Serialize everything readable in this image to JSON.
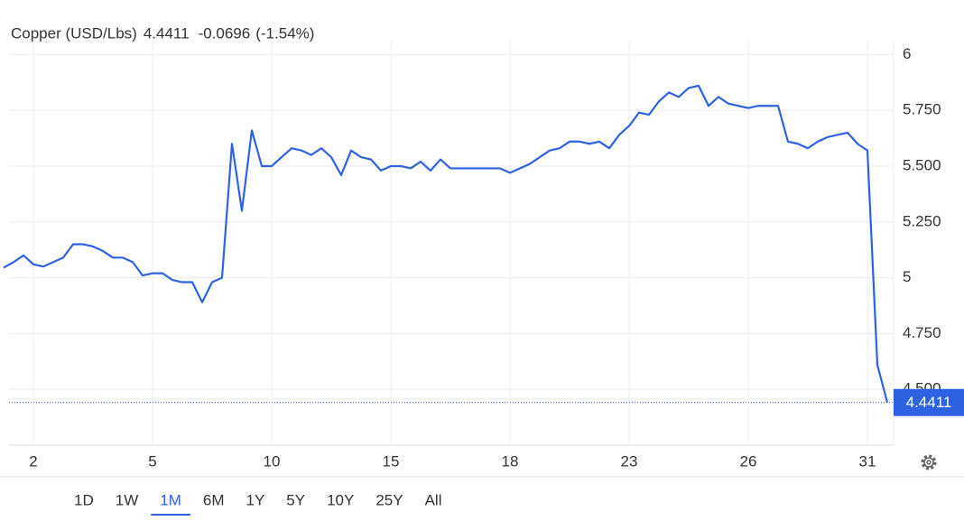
{
  "chart_data": {
    "type": "line",
    "title": "Copper (USD/Lbs)",
    "change": -0.0696,
    "change_label": "(-1.54%)",
    "color": "#2f62e3",
    "change_color": "#e04a4f",
    "grid": true,
    "categories": [
      null,
      null,
      null,
      "2",
      null,
      null,
      null,
      null,
      null,
      null,
      null,
      null,
      null,
      null,
      null,
      "5",
      null,
      null,
      null,
      null,
      null,
      null,
      null,
      null,
      null,
      null,
      null,
      "10",
      null,
      null,
      null,
      null,
      null,
      null,
      null,
      null,
      null,
      null,
      null,
      "15",
      null,
      null,
      null,
      null,
      null,
      null,
      null,
      null,
      null,
      null,
      null,
      "18",
      null,
      null,
      null,
      null,
      null,
      null,
      null,
      null,
      null,
      null,
      null,
      "23",
      null,
      null,
      null,
      null,
      null,
      null,
      null,
      null,
      null,
      null,
      null,
      "26",
      null,
      null,
      null,
      null,
      null,
      null,
      null,
      null,
      null,
      null,
      null,
      "31",
      null,
      null
    ],
    "values": [
      5.045,
      5.07,
      5.1,
      5.06,
      5.05,
      5.07,
      5.09,
      5.15,
      5.15,
      5.14,
      5.12,
      5.09,
      5.09,
      5.07,
      5.01,
      5.02,
      5.02,
      4.99,
      4.98,
      4.98,
      4.89,
      4.98,
      5.0,
      5.6,
      5.3,
      5.66,
      5.5,
      5.5,
      5.54,
      5.58,
      5.57,
      5.55,
      5.58,
      5.54,
      5.46,
      5.57,
      5.54,
      5.53,
      5.48,
      5.5,
      5.5,
      5.49,
      5.52,
      5.48,
      5.53,
      5.49,
      5.49,
      5.49,
      5.49,
      5.49,
      5.49,
      5.47,
      5.49,
      5.51,
      5.54,
      5.57,
      5.58,
      5.61,
      5.61,
      5.6,
      5.61,
      5.58,
      5.64,
      5.68,
      5.74,
      5.73,
      5.79,
      5.83,
      5.81,
      5.85,
      5.86,
      5.77,
      5.81,
      5.78,
      5.77,
      5.76,
      5.77,
      5.77,
      5.77,
      5.61,
      5.6,
      5.58,
      5.61,
      5.63,
      5.64,
      5.65,
      5.6,
      5.57,
      4.61,
      4.4411
    ],
    "ylim": [
      4.25,
      6.05
    ],
    "yticks": [
      {
        "value": 4.5,
        "label": "4.500"
      },
      {
        "value": 4.75,
        "label": "4.750"
      },
      5,
      {
        "value": 5.25,
        "label": "5.250"
      },
      {
        "value": 5.5,
        "label": "5.500"
      },
      {
        "value": 5.75,
        "label": "5.750"
      },
      6
    ],
    "range_buttons": [
      "1D",
      "1W",
      "1M",
      "6M",
      "1Y",
      "5Y",
      "10Y",
      "25Y",
      "All"
    ],
    "selected_range": "1M"
  }
}
